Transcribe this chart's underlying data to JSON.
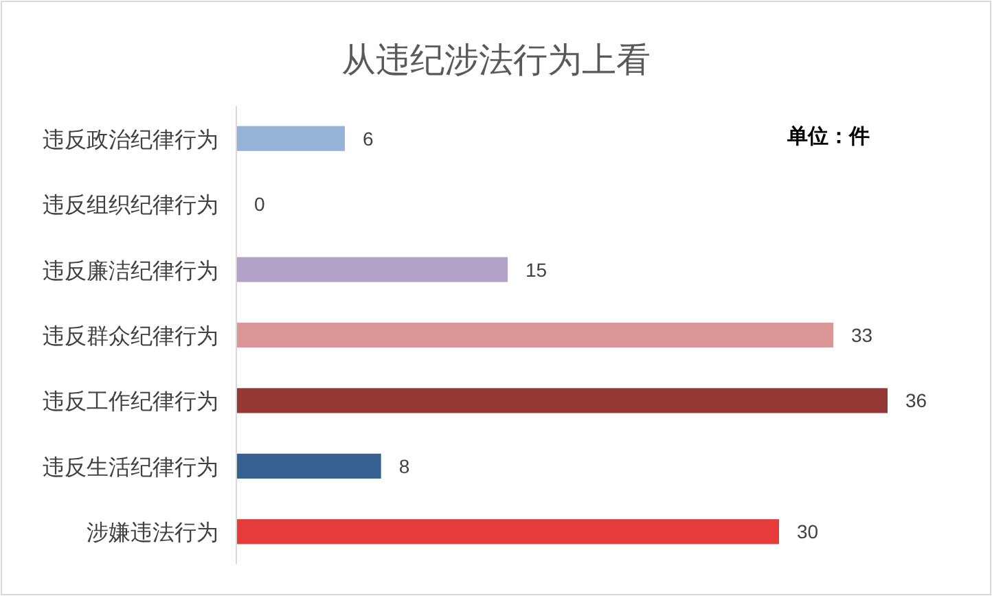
{
  "chart_data": {
    "type": "bar",
    "orientation": "horizontal",
    "title": "从违纪涉法行为上看",
    "categories": [
      "违反政治纪律行为",
      "违反组织纪律行为",
      "违反廉洁纪律行为",
      "违反群众纪律行为",
      "违反工作纪律行为",
      "违反生活纪律行为",
      "涉嫌违法行为"
    ],
    "values": [
      6,
      0,
      15,
      33,
      36,
      8,
      30
    ],
    "colors": [
      "#95b3d7",
      "#95b3d7",
      "#b3a2c7",
      "#d99694",
      "#953735",
      "#376092",
      "#e53b3b"
    ],
    "data_labels": true,
    "annotations": [
      "单位：件"
    ]
  }
}
